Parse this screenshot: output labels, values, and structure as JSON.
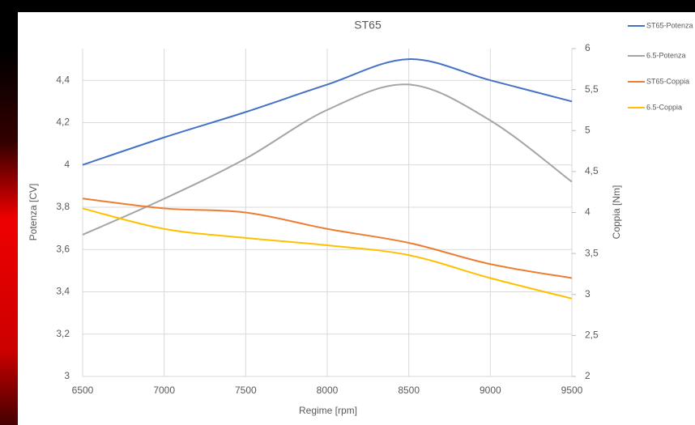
{
  "chart_data": {
    "type": "line",
    "title": "ST65",
    "x_label": "Regime [rpm]",
    "y_label": "Potenza [CV]",
    "y2_label": "Coppia [Nm]",
    "x": [
      6500,
      7000,
      7500,
      8000,
      8500,
      9000,
      9500
    ],
    "xlim": [
      6500,
      9500
    ],
    "xticks": [
      6500,
      7000,
      7500,
      8000,
      8500,
      9000,
      9500
    ],
    "ylim": [
      3,
      4.55
    ],
    "yticks": [
      3,
      {
        "value": 3.2,
        "label": "3,2"
      },
      {
        "value": 3.4,
        "label": "3,4"
      },
      {
        "value": 3.6,
        "label": "3,6"
      },
      {
        "value": 3.8,
        "label": "3,8"
      },
      4,
      {
        "value": 4.2,
        "label": "4,2"
      },
      {
        "value": 4.4,
        "label": "4,4"
      }
    ],
    "y2lim": [
      2,
      6
    ],
    "y2ticks": [
      2,
      {
        "value": 2.5,
        "label": "2,5"
      },
      3,
      {
        "value": 3.5,
        "label": "3,5"
      },
      4,
      {
        "value": 4.5,
        "label": "4,5"
      },
      5,
      {
        "value": 5.5,
        "label": "5,5"
      },
      6
    ],
    "grid": true,
    "legend": "right",
    "series": [
      {
        "name": "ST65-Potenza",
        "color": "#4472c4",
        "values": [
          4.0,
          4.13,
          4.25,
          4.38,
          4.5,
          4.4,
          4.3
        ]
      },
      {
        "name": "6.5-Potenza",
        "color": "#a5a5a5",
        "values": [
          3.67,
          3.84,
          4.03,
          4.26,
          4.38,
          4.21,
          3.92
        ]
      },
      {
        "name": "ST65-Coppia",
        "color": "#ed7d31",
        "axis": "y2",
        "values": [
          4.17,
          4.05,
          4.0,
          3.8,
          3.63,
          3.37,
          3.2
        ]
      },
      {
        "name": "6.5-Coppia",
        "color": "#ffc000",
        "axis": "y2",
        "values": [
          4.05,
          3.8,
          3.69,
          3.6,
          3.48,
          3.2,
          2.95
        ]
      }
    ]
  }
}
